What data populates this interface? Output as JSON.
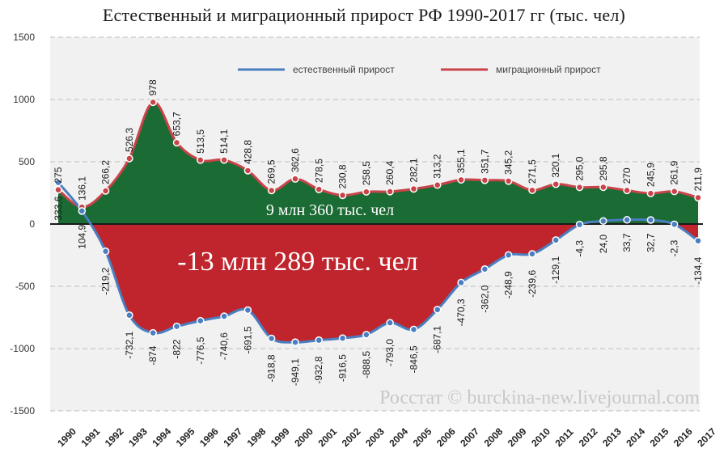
{
  "chart_data": {
    "type": "area",
    "title": "Естественный и миграционный прирост РФ 1990-2017 гг (тыс. чел)",
    "xlabel": "",
    "ylabel": "",
    "ylim": [
      -1500,
      1500
    ],
    "yticks": [
      1500,
      1000,
      500,
      0,
      -500,
      -1000,
      -1500
    ],
    "grid": true,
    "legend_position": "top",
    "categories": [
      "1990",
      "1991",
      "1992",
      "1993",
      "1994",
      "1995",
      "1996",
      "1997",
      "1998",
      "1999",
      "2000",
      "2001",
      "2002",
      "2003",
      "2004",
      "2005",
      "2006",
      "2007",
      "2008",
      "2009",
      "2010",
      "2011",
      "2012",
      "2013",
      "2014",
      "2015",
      "2016",
      "2017"
    ],
    "series": [
      {
        "name": "естественный прирост",
        "color": "#4a7ec0",
        "fill": "#c0252d",
        "values": [
          333.6,
          104.9,
          -219.2,
          -732.1,
          -874,
          -822,
          -776.5,
          -740.6,
          -691.5,
          -918.8,
          -949.1,
          -932.8,
          -916.5,
          -888.5,
          -793.0,
          -846.5,
          -687.1,
          -470.3,
          -362.0,
          -248.9,
          -239.6,
          -129.1,
          -4.3,
          24.0,
          33.7,
          32.7,
          -2.3,
          -134.4
        ],
        "labels": [
          "333,6",
          "104,9",
          "-219,2",
          "-732,1",
          "-874",
          "-822",
          "-776,5",
          "-740,6",
          "-691,5",
          "-918,8",
          "-949,1",
          "-932,8",
          "-916,5",
          "-888,5",
          "-793,0",
          "-846,5",
          "-687,1",
          "-470,3",
          "-362,0",
          "-248,9",
          "-239,6",
          "-129,1",
          "-4,3",
          "24,0",
          "33,7",
          "32,7",
          "-2,3",
          "-134,4"
        ]
      },
      {
        "name": "миграционный прирост",
        "color": "#c9444a",
        "fill": "#1b6b34",
        "values": [
          275,
          136.1,
          266.2,
          526.3,
          978,
          653.7,
          513.5,
          514.1,
          428.8,
          269.5,
          362.6,
          278.5,
          230.8,
          258.5,
          260.4,
          282.1,
          313.2,
          355.1,
          351.7,
          345.2,
          271.5,
          320.1,
          295.0,
          295.8,
          270,
          245.9,
          261.9,
          211.9
        ],
        "labels": [
          "275",
          "136,1",
          "266,2",
          "526,3",
          "978",
          "653,7",
          "513,5",
          "514,1",
          "428,8",
          "269,5",
          "362,6",
          "278,5",
          "230,8",
          "258,5",
          "260,4",
          "282,1",
          "313,2",
          "355,1",
          "351,7",
          "345,2",
          "271,5",
          "320,1",
          "295,0",
          "295,8",
          "270",
          "245,9",
          "261,9",
          "211,9"
        ]
      }
    ],
    "annotations": [
      {
        "text": "9 млн 360 тыс. чел",
        "color": "#ffffff"
      },
      {
        "text": "-13 млн 289 тыс. чел",
        "color": "#ffffff"
      }
    ],
    "watermark": "Росстат © burckina-new.livejournal.com"
  }
}
